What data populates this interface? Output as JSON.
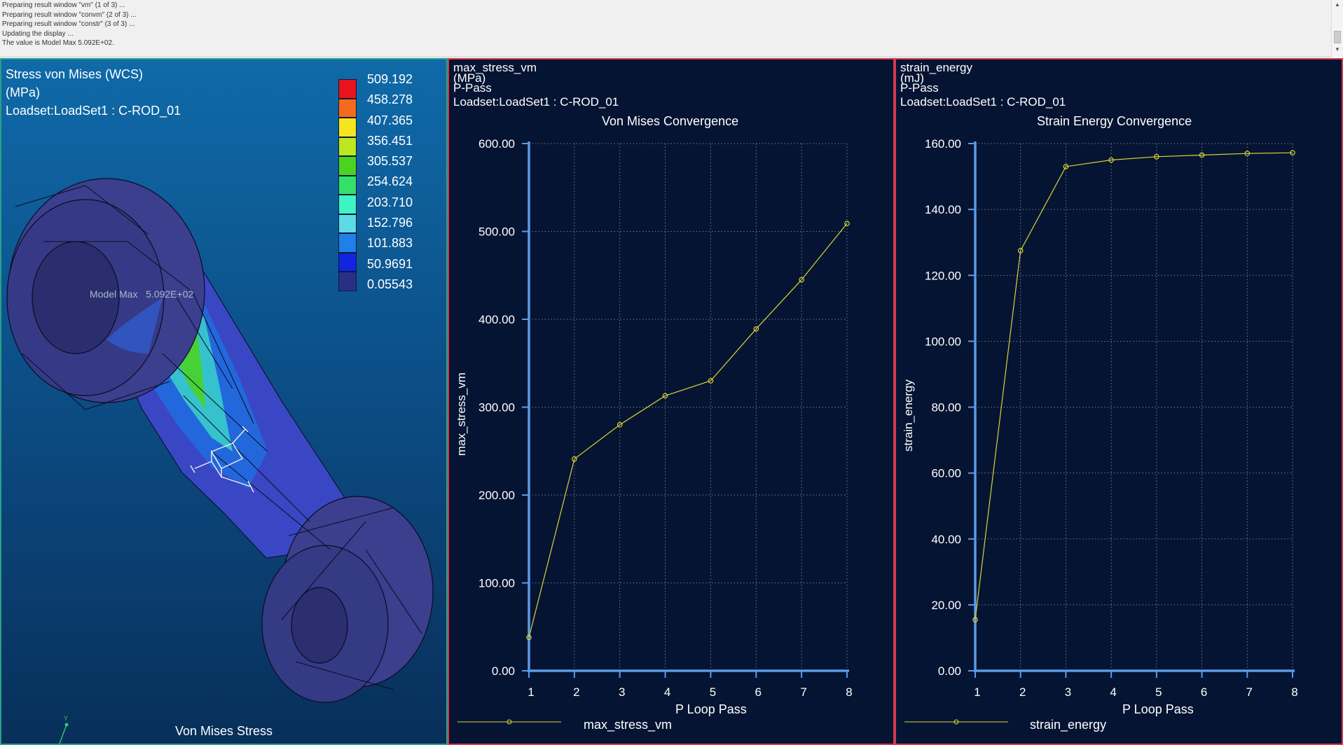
{
  "message_log": {
    "lines": [
      "Preparing result window \"vm\" (1 of 3) ...",
      "Preparing result window \"convm\" (2 of 3) ...",
      "Preparing result window \"constr\" (3 of 3) ...",
      "Updating the display ...",
      "The value is Model Max   5.092E+02."
    ],
    "scroll_up": "▲",
    "scroll_down": "▼"
  },
  "vm_window": {
    "result_title": "Stress von Mises (WCS)",
    "units": "(MPa)",
    "loadset": "Loadset:LoadSet1 :  C-ROD_01",
    "view_name": "Von Mises Stress",
    "model_max_prefix": "Model Max",
    "model_max_value": "5.092E+02",
    "legend": {
      "values": [
        "509.192",
        "458.278",
        "407.365",
        "356.451",
        "305.537",
        "254.624",
        "203.710",
        "152.796",
        "101.883",
        "50.9691",
        "0.05543"
      ],
      "colors": [
        "#e8131c",
        "#f56a1a",
        "#f5e41f",
        "#bde71f",
        "#4ad31f",
        "#33e06a",
        "#3ef4c5",
        "#5cdbe6",
        "#1f80e8",
        "#0f25e0",
        "#2a2f86"
      ]
    },
    "triad": {
      "y_label": "Y",
      "x_label": "X"
    },
    "colors": {
      "mesh": "#3b3f8e",
      "edge": "#0b0b1f"
    }
  },
  "convm_window": {
    "measure_name": "max_stress_vm",
    "units": "(MPa)",
    "pass_type": "P-Pass",
    "loadset": "Loadset:LoadSet1 :  C-ROD_01",
    "legend_label": "max_stress_vm",
    "chart_data": {
      "type": "line",
      "title": "Von Mises Convergence",
      "xlabel": "P Loop Pass",
      "ylabel": "max_stress_vm",
      "x": [
        1,
        2,
        3,
        4,
        5,
        6,
        7,
        8
      ],
      "series": [
        {
          "name": "max_stress_vm",
          "values": [
            38,
            241,
            280,
            313,
            330,
            389,
            445,
            509
          ],
          "color": "#d9d335"
        }
      ],
      "xlim": [
        1,
        8
      ],
      "ylim": [
        0,
        600
      ],
      "yticks": [
        "0.00",
        "100.00",
        "200.00",
        "300.00",
        "400.00",
        "500.00",
        "600.00"
      ],
      "xticks": [
        "1",
        "2",
        "3",
        "4",
        "5",
        "6",
        "7",
        "8"
      ],
      "grid": true,
      "legend_position": "bottom"
    }
  },
  "constr_window": {
    "measure_name": "strain_energy",
    "units": "(mJ)",
    "pass_type": "P-Pass",
    "loadset": "Loadset:LoadSet1 :  C-ROD_01",
    "legend_label": "strain_energy",
    "chart_data": {
      "type": "line",
      "title": "Strain Energy Convergence",
      "xlabel": "P Loop Pass",
      "ylabel": "strain_energy",
      "x": [
        1,
        2,
        3,
        4,
        5,
        6,
        7,
        8
      ],
      "series": [
        {
          "name": "strain_energy",
          "values": [
            15.5,
            127.5,
            153,
            155,
            156,
            156.5,
            157,
            157.2
          ],
          "color": "#d9d335"
        }
      ],
      "xlim": [
        1,
        8
      ],
      "ylim": [
        0,
        160
      ],
      "yticks": [
        "0.00",
        "20.00",
        "40.00",
        "60.00",
        "80.00",
        "100.00",
        "120.00",
        "140.00",
        "160.00"
      ],
      "xticks": [
        "1",
        "2",
        "3",
        "4",
        "5",
        "6",
        "7",
        "8"
      ],
      "grid": true,
      "legend_position": "bottom"
    }
  }
}
